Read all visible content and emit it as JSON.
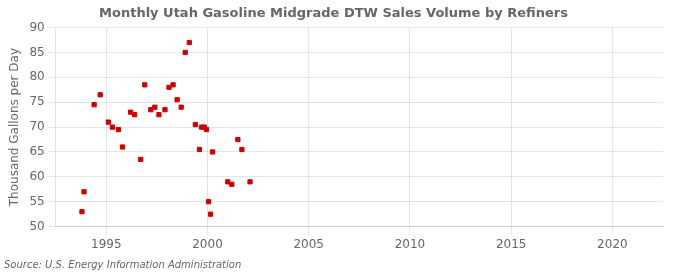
{
  "chart_data": {
    "type": "scatter",
    "title": "Monthly Utah Gasoline Midgrade DTW Sales Volume by Refiners",
    "ylabel": "Thousand Gallons per Day",
    "annotations": [
      "Source: U.S. Energy Information Administration"
    ],
    "color": "#cc0000",
    "marker": "square",
    "grid": true,
    "xlim": [
      1992.5,
      2022.5
    ],
    "ylim": [
      50,
      90
    ],
    "xticks": [
      1995,
      2000,
      2005,
      2010,
      2015,
      2020
    ],
    "yticks": [
      50,
      55,
      60,
      65,
      70,
      75,
      80,
      85,
      90
    ],
    "x": [
      1993.8,
      1993.9,
      1994.4,
      1994.7,
      1995.1,
      1995.3,
      1995.6,
      1995.8,
      1996.2,
      1996.4,
      1996.7,
      1996.9,
      1997.2,
      1997.4,
      1997.6,
      1997.9,
      1998.1,
      1998.3,
      1998.5,
      1998.7,
      1998.9,
      1999.1,
      1999.4,
      1999.6,
      1999.7,
      1999.85,
      1999.95,
      2000.05,
      2000.15,
      2000.25,
      2001.0,
      2001.2,
      2001.5,
      2001.7,
      2002.1
    ],
    "values": [
      53.0,
      57.0,
      74.5,
      76.5,
      71.0,
      70.0,
      69.5,
      66.0,
      73.0,
      72.5,
      63.5,
      78.5,
      73.5,
      74.0,
      72.5,
      73.5,
      78.0,
      78.5,
      75.5,
      74.0,
      85.0,
      87.0,
      70.5,
      65.5,
      70.0,
      70.0,
      69.5,
      55.0,
      52.5,
      65.0,
      59.0,
      58.5,
      67.5,
      65.5,
      59.0
    ]
  }
}
